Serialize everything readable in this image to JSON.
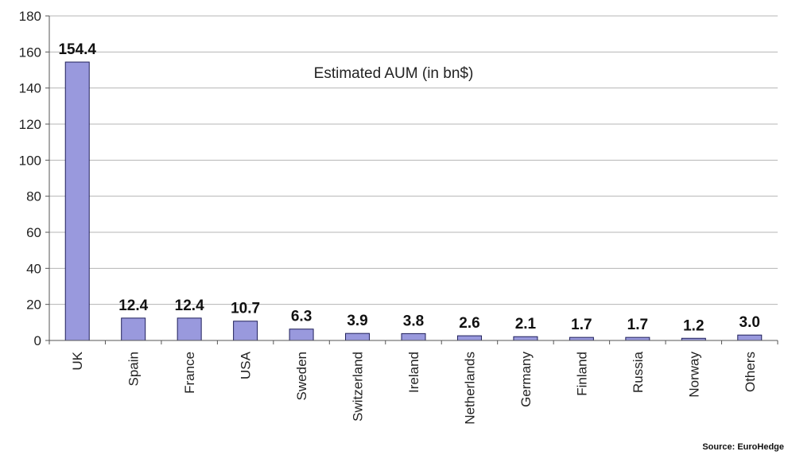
{
  "chart_data": {
    "type": "bar",
    "title": "Estimated AUM (in bn$)",
    "xlabel": "",
    "ylabel": "",
    "categories": [
      "UK",
      "Spain",
      "France",
      "USA",
      "Sweden",
      "Switzerland",
      "Ireland",
      "Netherlands",
      "Germany",
      "Finland",
      "Russia",
      "Norway",
      "Others"
    ],
    "values": [
      154.4,
      12.4,
      12.4,
      10.7,
      6.3,
      3.9,
      3.8,
      2.6,
      2.1,
      1.7,
      1.7,
      1.2,
      3.0
    ],
    "data_labels": [
      "154.4",
      "12.4",
      "12.4",
      "10.7",
      "6.3",
      "3.9",
      "3.8",
      "2.6",
      "2.1",
      "1.7",
      "1.7",
      "1.2",
      "3.0"
    ],
    "ylim": [
      0,
      180
    ],
    "yticks": [
      "0",
      "20",
      "40",
      "60",
      "80",
      "100",
      "120",
      "140",
      "160",
      "180"
    ],
    "grid": true,
    "legend": "none",
    "bar_color": "#9999dd",
    "bar_stroke": "#1f1f5a",
    "source": "Source: EuroHedge"
  }
}
